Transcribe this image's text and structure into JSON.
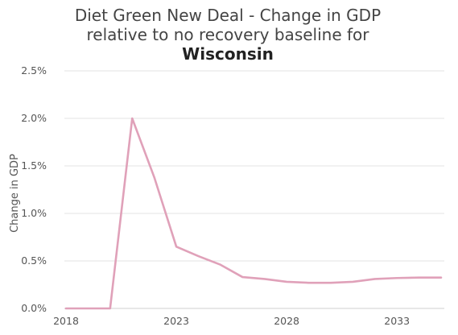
{
  "chart_data": {
    "type": "line",
    "title_lines": [
      "Diet Green New Deal - Change in GDP",
      "relative to no recovery baseline for"
    ],
    "title_emphasis": "Wisconsin",
    "ylabel": "Change in GDP",
    "xlabel": "",
    "xlim": [
      2018,
      2035
    ],
    "ylim": [
      0,
      0.025
    ],
    "x_ticks": [
      2018,
      2023,
      2028,
      2033
    ],
    "y_ticks": [
      0,
      0.005,
      0.01,
      0.015,
      0.02,
      0.025
    ],
    "y_tick_labels": [
      "0.0%",
      "0.5%",
      "1.0%",
      "1.5%",
      "2.0%",
      "2.5%"
    ],
    "grid": true,
    "series": [
      {
        "color": "#e0a1b9",
        "x": [
          2018,
          2019,
          2020,
          2021,
          2022,
          2023,
          2024,
          2025,
          2026,
          2027,
          2028,
          2029,
          2030,
          2031,
          2032,
          2033,
          2034,
          2035
        ],
        "y": [
          0.0,
          0.0,
          0.0,
          0.02,
          0.0138,
          0.0065,
          0.0055,
          0.0046,
          0.0033,
          0.0031,
          0.0028,
          0.0027,
          0.0027,
          0.0028,
          0.0031,
          0.0032,
          0.00325,
          0.00325
        ]
      }
    ]
  }
}
